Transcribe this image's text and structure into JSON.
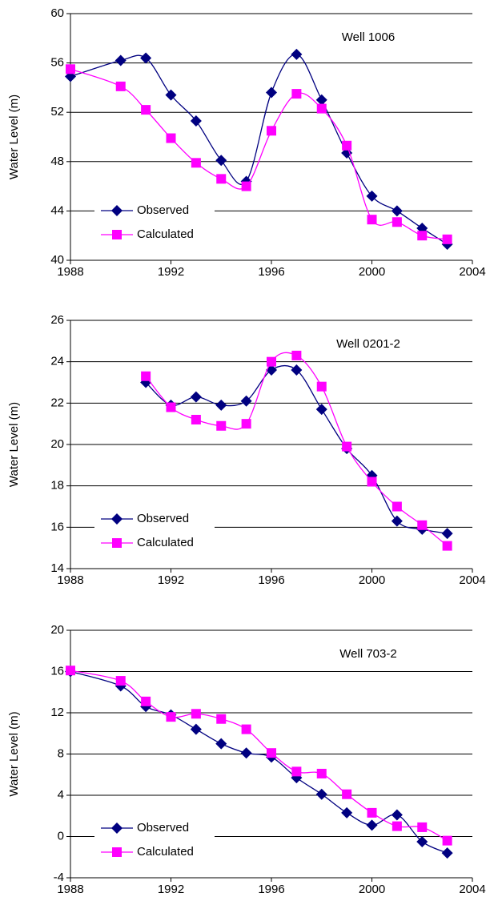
{
  "chart_data": [
    {
      "type": "line",
      "title": "Well 1006",
      "y_label": "Water Level (m)",
      "x": [
        1988,
        1990,
        1991,
        1992,
        1993,
        1994,
        1995,
        1996,
        1997,
        1998,
        1999,
        2000,
        2001,
        2002,
        2003
      ],
      "series": [
        {
          "name": "Observed",
          "color": "#000080",
          "marker": "diamond",
          "values": [
            54.9,
            56.2,
            56.4,
            53.4,
            51.3,
            48.1,
            46.4,
            53.6,
            56.7,
            53.0,
            48.7,
            45.2,
            44.0,
            42.6,
            41.3
          ]
        },
        {
          "name": "Calculated",
          "color": "#ff00ff",
          "marker": "square",
          "values": [
            55.5,
            54.1,
            52.2,
            49.9,
            47.9,
            46.6,
            46.0,
            50.5,
            53.5,
            52.3,
            49.3,
            43.3,
            43.1,
            42.0,
            41.7
          ]
        }
      ],
      "xlim": [
        1988,
        2004
      ],
      "xticks": [
        1988,
        1992,
        1996,
        2000,
        2004
      ],
      "ylim": [
        40,
        60
      ],
      "yticks": [
        40,
        44,
        48,
        52,
        56,
        60
      ],
      "grid": true,
      "legend": "lower left"
    },
    {
      "type": "line",
      "title": "Well 0201-2",
      "y_label": "Water Level (m)",
      "x": [
        1991,
        1992,
        1993,
        1994,
        1995,
        1996,
        1997,
        1998,
        1999,
        2000,
        2001,
        2002,
        2003
      ],
      "series": [
        {
          "name": "Observed",
          "color": "#000080",
          "marker": "diamond",
          "values": [
            23.0,
            21.9,
            22.3,
            21.9,
            22.1,
            23.6,
            23.6,
            21.7,
            19.8,
            18.5,
            16.3,
            15.9,
            15.7
          ]
        },
        {
          "name": "Calculated",
          "color": "#ff00ff",
          "marker": "square",
          "values": [
            23.3,
            21.8,
            21.2,
            20.9,
            21.0,
            24.0,
            24.3,
            22.8,
            19.9,
            18.2,
            17.0,
            16.1,
            15.1
          ]
        }
      ],
      "xlim": [
        1988,
        2004
      ],
      "xticks": [
        1988,
        1992,
        1996,
        2000,
        2004
      ],
      "ylim": [
        14,
        26
      ],
      "yticks": [
        14,
        16,
        18,
        20,
        22,
        24,
        26
      ],
      "grid": true,
      "legend": "lower left"
    },
    {
      "type": "line",
      "title": "Well 703-2",
      "y_label": "Water Level (m)",
      "x": [
        1988,
        1990,
        1991,
        1992,
        1993,
        1994,
        1995,
        1996,
        1997,
        1998,
        1999,
        2000,
        2001,
        2002,
        2003
      ],
      "series": [
        {
          "name": "Observed",
          "color": "#000080",
          "marker": "diamond",
          "values": [
            16.0,
            14.6,
            12.6,
            11.8,
            10.4,
            9.0,
            8.1,
            7.7,
            5.7,
            4.1,
            2.3,
            1.1,
            2.1,
            -0.5,
            -1.6
          ]
        },
        {
          "name": "Calculated",
          "color": "#ff00ff",
          "marker": "square",
          "values": [
            16.1,
            15.1,
            13.1,
            11.6,
            11.9,
            11.4,
            10.4,
            8.1,
            6.3,
            6.1,
            4.1,
            2.3,
            1.0,
            0.9,
            -0.4
          ]
        }
      ],
      "xlim": [
        1988,
        2004
      ],
      "xticks": [
        1988,
        1992,
        1996,
        2000,
        2004
      ],
      "ylim": [
        -4,
        20
      ],
      "yticks": [
        -4,
        0,
        4,
        8,
        12,
        16,
        20
      ],
      "grid": true,
      "legend": "lower left"
    }
  ]
}
